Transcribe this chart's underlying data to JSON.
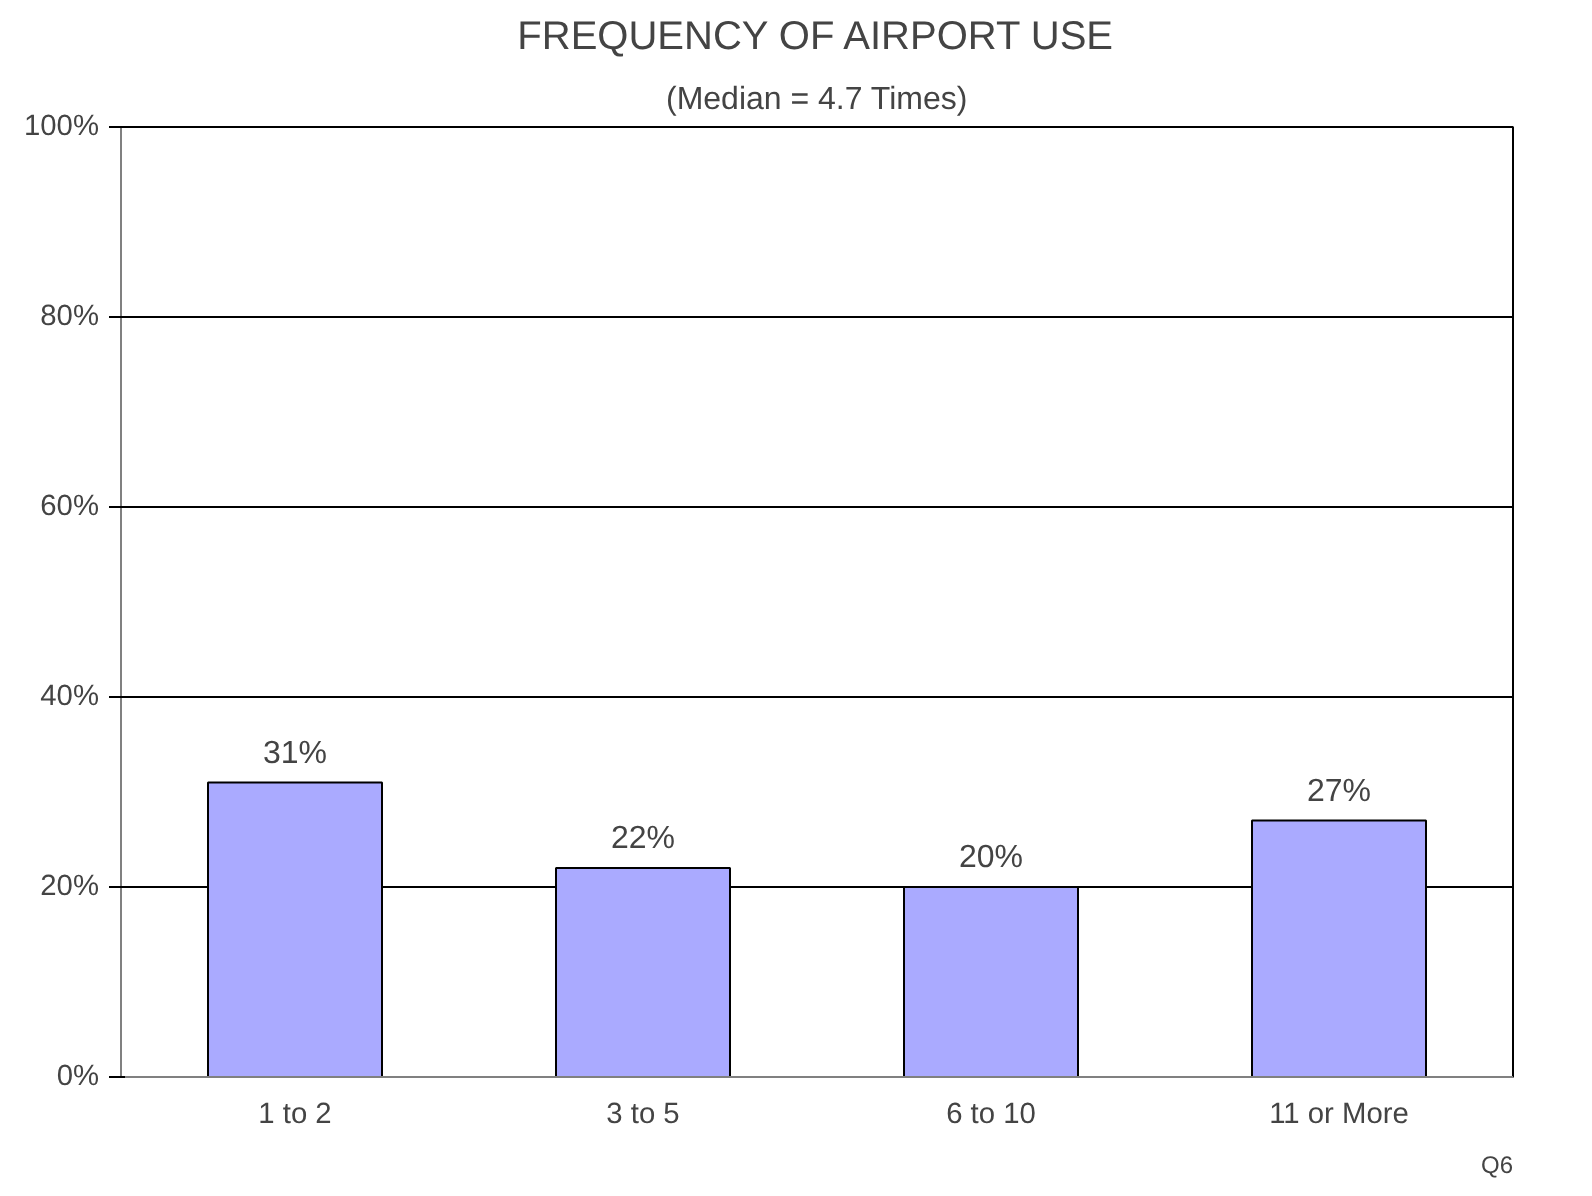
{
  "chart_data": {
    "type": "bar",
    "title": "FREQUENCY OF AIRPORT USE",
    "subtitle": "(Median = 4.7 Times)",
    "categories": [
      "1 to 2",
      "3 to 5",
      "6 to 10",
      "11 or More"
    ],
    "values": [
      31,
      22,
      20,
      27
    ],
    "color": "#aaaaff",
    "value_labels": [
      "31%",
      "22%",
      "20%",
      "27%"
    ],
    "ylim": [
      0,
      100
    ],
    "yticks": [
      {
        "value": 0,
        "label": "0%"
      },
      {
        "value": 20,
        "label": "20%"
      },
      {
        "value": 40,
        "label": "40%"
      },
      {
        "value": 60,
        "label": "60%"
      },
      {
        "value": 80,
        "label": "80%"
      },
      {
        "value": 100,
        "label": "100%"
      }
    ],
    "grid": "y",
    "annotations": [
      "Q6"
    ]
  }
}
